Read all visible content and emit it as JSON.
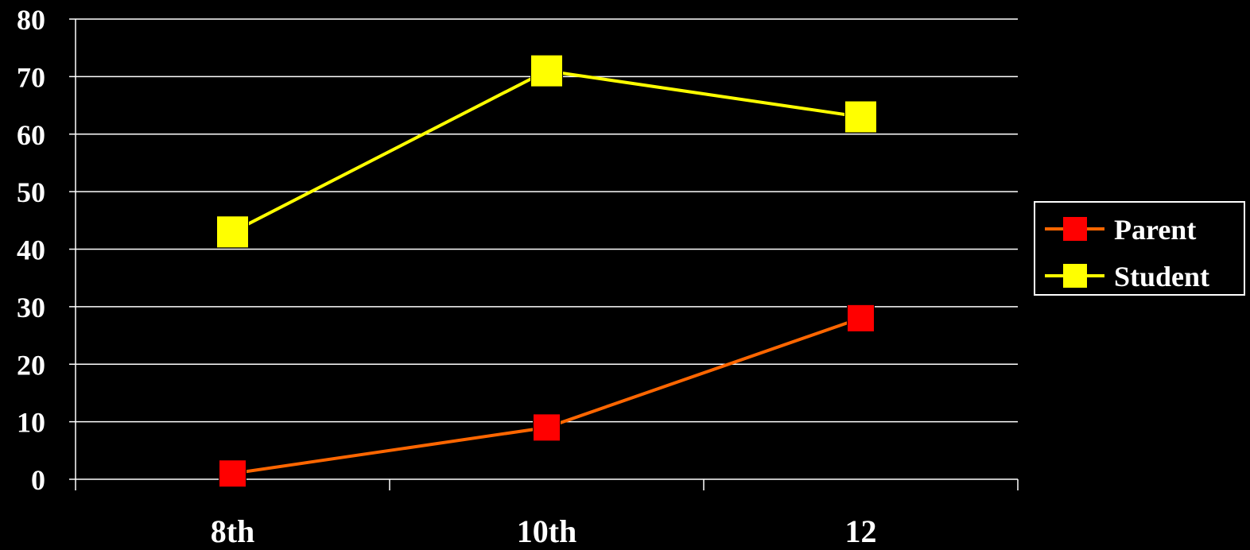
{
  "chart_data": {
    "type": "line",
    "categories": [
      "8th",
      "10th",
      "12"
    ],
    "series": [
      {
        "name": "Parent",
        "values": [
          1,
          9,
          28
        ],
        "line_color": "#ff6600",
        "marker_color": "#ff0000"
      },
      {
        "name": "Student",
        "values": [
          43,
          71,
          63
        ],
        "line_color": "#ffff00",
        "marker_color": "#ffff00"
      }
    ],
    "ylim": [
      0,
      80
    ],
    "yticks": [
      "0",
      "10",
      "20",
      "30",
      "40",
      "50",
      "60",
      "70",
      "80"
    ],
    "grid": true,
    "legend_placement": "right",
    "title": "",
    "xlabel": "",
    "ylabel": ""
  },
  "colors": {
    "background": "#000000",
    "axis": "#ffffff",
    "text": "#ffffff"
  }
}
